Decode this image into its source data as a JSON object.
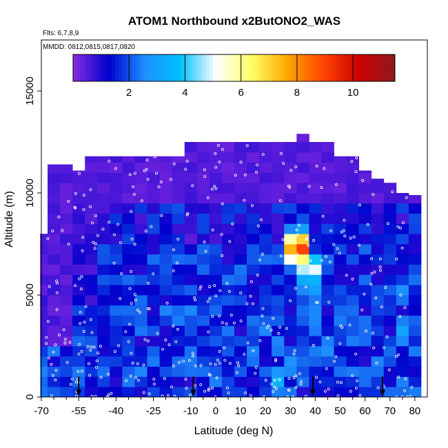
{
  "chart_data": {
    "type": "heatmap",
    "title": "ATOM1 Northbound x2ButONO2_WAS",
    "subtitle_flights": "Flts: 6,7,8,9",
    "subtitle_dates": "MMDD: 0812,0815,0817,0820",
    "xlabel": "Latitude (deg N)",
    "ylabel": "Altitude (m)",
    "xlim": [
      -70,
      85
    ],
    "ylim": [
      0,
      17500
    ],
    "x_ticks": [
      -70,
      -55,
      -40,
      -25,
      -10,
      0,
      10,
      20,
      30,
      40,
      50,
      60,
      70,
      80
    ],
    "x_tick_labels": [
      "-70",
      "-55",
      "-40",
      "-25",
      "-10",
      "0",
      "10",
      "20",
      "30",
      "40",
      "50",
      "60",
      "70",
      "80"
    ],
    "x_minor_ticks": [
      -65,
      -60,
      -50,
      -45,
      -35,
      -30,
      -20,
      -15,
      -5,
      5,
      15,
      25,
      35,
      45,
      55,
      65,
      75
    ],
    "y_ticks": [
      0,
      5000,
      10000,
      15000
    ],
    "y_tick_labels": [
      "0",
      "5000",
      "10000",
      "15000"
    ],
    "colorbar": {
      "range": [
        0,
        11.5
      ],
      "ticks": [
        2,
        4,
        6,
        8,
        10
      ],
      "tick_labels": [
        "2",
        "4",
        "6",
        "8",
        "10"
      ],
      "colors": [
        "#8a2be2",
        "#0000cd",
        "#1e90ff",
        "#00bfff",
        "#ffffff",
        "#ffff66",
        "#ffa500",
        "#ff4500",
        "#cc0000",
        "#8b1a1a"
      ]
    },
    "flight_markers_lat": [
      -55,
      -9,
      39,
      67
    ],
    "columns": [
      {
        "lat": -68,
        "top": 8000
      },
      {
        "lat": -65,
        "top": 11400
      },
      {
        "lat": -60,
        "top": 11400
      },
      {
        "lat": -55,
        "top": 11100
      },
      {
        "lat": -50,
        "top": 11800
      },
      {
        "lat": -45,
        "top": 11800
      },
      {
        "lat": -40,
        "top": 11800
      },
      {
        "lat": -35,
        "top": 11800
      },
      {
        "lat": -30,
        "top": 11800
      },
      {
        "lat": -25,
        "top": 11800
      },
      {
        "lat": -20,
        "top": 11800
      },
      {
        "lat": -15,
        "top": 11800
      },
      {
        "lat": -10,
        "top": 12500
      },
      {
        "lat": -5,
        "top": 12500
      },
      {
        "lat": 0,
        "top": 12500
      },
      {
        "lat": 5,
        "top": 12500
      },
      {
        "lat": 10,
        "top": 12500
      },
      {
        "lat": 15,
        "top": 12500
      },
      {
        "lat": 20,
        "top": 12500
      },
      {
        "lat": 25,
        "top": 12500
      },
      {
        "lat": 30,
        "top": 12500
      },
      {
        "lat": 35,
        "top": 12900
      },
      {
        "lat": 40,
        "top": 12500
      },
      {
        "lat": 45,
        "top": 12500
      },
      {
        "lat": 50,
        "top": 11800
      },
      {
        "lat": 55,
        "top": 11800
      },
      {
        "lat": 60,
        "top": 11100
      },
      {
        "lat": 65,
        "top": 10700
      },
      {
        "lat": 70,
        "top": 10500
      },
      {
        "lat": 75,
        "top": 10000
      },
      {
        "lat": 80,
        "top": 9900
      }
    ],
    "features": [
      {
        "lat": 33,
        "alt": 7300,
        "value": 10.5
      },
      {
        "lat": 37,
        "alt": 6300,
        "value": 5.5
      },
      {
        "lat": 40,
        "alt": 6300,
        "value": 5.0
      },
      {
        "lat": 25,
        "alt": 800,
        "value": 3.5
      },
      {
        "lat": 32,
        "alt": 1800,
        "value": 3.0
      },
      {
        "lat": 43,
        "alt": 2200,
        "value": 3.0
      },
      {
        "lat": 38,
        "alt": 5200,
        "value": 3.5
      },
      {
        "lat": 73,
        "alt": 5200,
        "value": 3.0
      },
      {
        "lat": -52,
        "alt": 3000,
        "value": 2.0
      },
      {
        "lat": -45,
        "alt": 6800,
        "value": 2.0
      },
      {
        "lat": -5,
        "alt": 8500,
        "value": 2.0
      },
      {
        "lat": 15,
        "alt": 7000,
        "value": 2.2
      },
      {
        "lat": 55,
        "alt": 3500,
        "value": 2.2
      },
      {
        "lat": 76,
        "alt": 3300,
        "value": 3.2
      }
    ]
  }
}
